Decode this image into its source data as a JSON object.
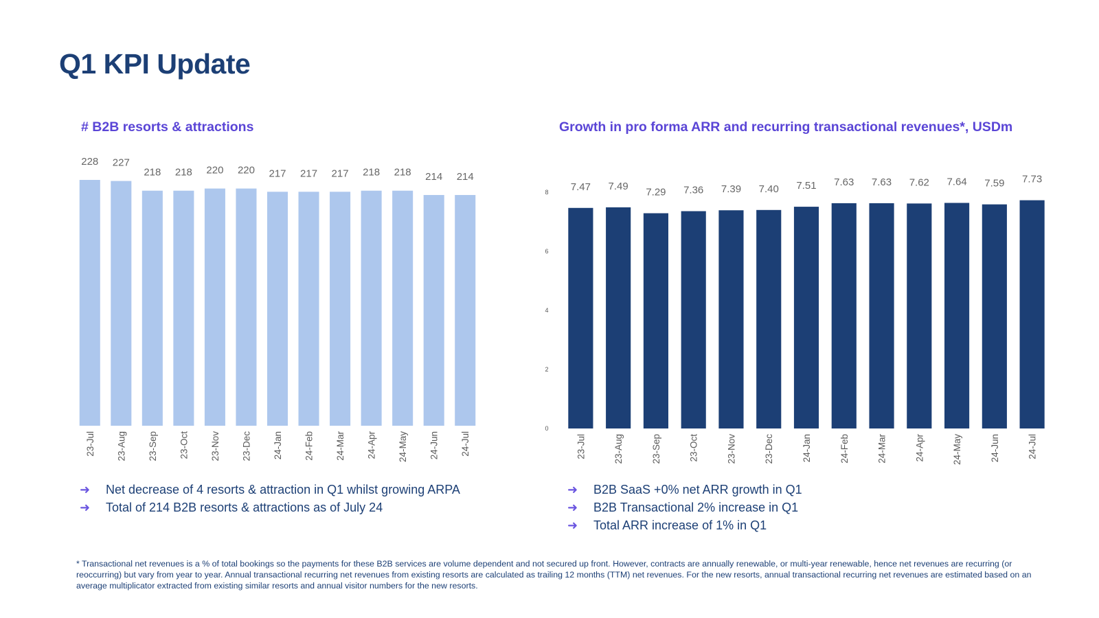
{
  "page": {
    "title": "Q1 KPI Update"
  },
  "colors": {
    "title": "#1c3f75",
    "accent": "#5a45d6",
    "light_bar": "#adc7ed",
    "dark_bar": "#1c3f75"
  },
  "chart_data": [
    {
      "type": "bar",
      "title": "# B2B resorts & attractions",
      "categories": [
        "23-Jul",
        "23-Aug",
        "23-Sep",
        "23-Oct",
        "23-Nov",
        "23-Dec",
        "24-Jan",
        "24-Feb",
        "24-Mar",
        "24-Apr",
        "24-May",
        "24-Jun",
        "24-Jul"
      ],
      "values": [
        228,
        227,
        218,
        218,
        220,
        220,
        217,
        217,
        217,
        218,
        218,
        214,
        214
      ],
      "value_labels": [
        "228",
        "227",
        "218",
        "218",
        "220",
        "220",
        "217",
        "217",
        "217",
        "218",
        "218",
        "214",
        "214"
      ],
      "ylim": [
        0,
        228
      ],
      "yaxis_visible": false,
      "grid": false,
      "color": "#adc7ed"
    },
    {
      "type": "bar",
      "title": "Growth in pro forma ARR and recurring transactional revenues*, USDm",
      "categories": [
        "23-Jul",
        "23-Aug",
        "23-Sep",
        "23-Oct",
        "23-Nov",
        "23-Dec",
        "24-Jan",
        "24-Feb",
        "24-Mar",
        "24-Apr",
        "24-May",
        "24-Jun",
        "24-Jul"
      ],
      "values": [
        7.47,
        7.49,
        7.29,
        7.36,
        7.39,
        7.4,
        7.51,
        7.63,
        7.63,
        7.62,
        7.64,
        7.59,
        7.73
      ],
      "value_labels": [
        "7.47",
        "7.49",
        "7.29",
        "7.36",
        "7.39",
        "7.40",
        "7.51",
        "7.63",
        "7.63",
        "7.62",
        "7.64",
        "7.59",
        "7.73"
      ],
      "yticks": [
        0,
        2,
        4,
        6,
        8
      ],
      "ytick_labels": [
        "0",
        "2",
        "4",
        "6",
        "8"
      ],
      "ylim": [
        0,
        8
      ],
      "grid": false,
      "color": "#1c3f75"
    }
  ],
  "bullets_left": [
    "Net decrease of 4 resorts & attraction in Q1 whilst growing ARPA",
    "Total of 214 B2B resorts & attractions as of July 24"
  ],
  "bullets_right": [
    "B2B SaaS +0% net ARR growth in Q1",
    "B2B Transactional 2% increase in Q1",
    "Total ARR increase of 1% in Q1"
  ],
  "bullet_symbol": "➜",
  "footnote": "* Transactional net revenues is a % of total bookings so the payments for these B2B services are volume dependent and not secured up front. However, contracts are annually renewable, or multi-year renewable, hence net revenues are recurring (or reoccurring) but vary from year to year. Annual transactional recurring net revenues from existing resorts are calculated as trailing 12 months (TTM) net revenues. For the new resorts, annual transactional recurring net revenues are estimated based on an average multiplicator extracted from existing similar resorts and annual visitor numbers for the new resorts."
}
